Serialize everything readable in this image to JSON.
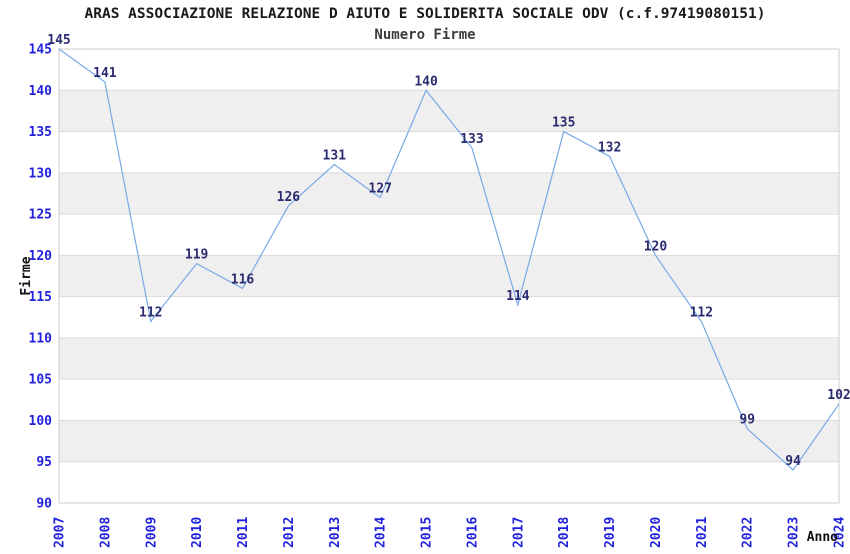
{
  "chart_data": {
    "type": "line",
    "title": "ARAS ASSOCIAZIONE RELAZIONE D AIUTO E SOLIDERITA SOCIALE ODV (c.f.97419080151)",
    "subtitle": "Numero Firme",
    "xlabel": "Anno",
    "ylabel": "Firme",
    "x": [
      "2007",
      "2008",
      "2009",
      "2010",
      "2011",
      "2012",
      "2013",
      "2014",
      "2015",
      "2016",
      "2017",
      "2018",
      "2019",
      "2020",
      "2021",
      "2022",
      "2023",
      "2024"
    ],
    "values": [
      145,
      141,
      112,
      119,
      116,
      126,
      131,
      127,
      140,
      133,
      114,
      135,
      132,
      120,
      112,
      99,
      94,
      102
    ],
    "ylim": [
      90,
      145
    ],
    "ytick_step": 5,
    "yticks": [
      90,
      95,
      100,
      105,
      110,
      115,
      120,
      125,
      130,
      135,
      140,
      145
    ],
    "grid": "horizontal gridlines with alternating gray bands",
    "legend_position": "none",
    "point_labels_visible": true
  },
  "colors": {
    "line": "#79a9e6",
    "tick_label": "#2222dd",
    "point_label": "#2b2b70",
    "title": "#1a1a1a",
    "subtitle": "#3c3c3c",
    "axis_title": "#111111",
    "band": "#efefef",
    "gridline": "#dcdcdc",
    "plot_border": "#cccccc",
    "background": "#ffffff"
  }
}
